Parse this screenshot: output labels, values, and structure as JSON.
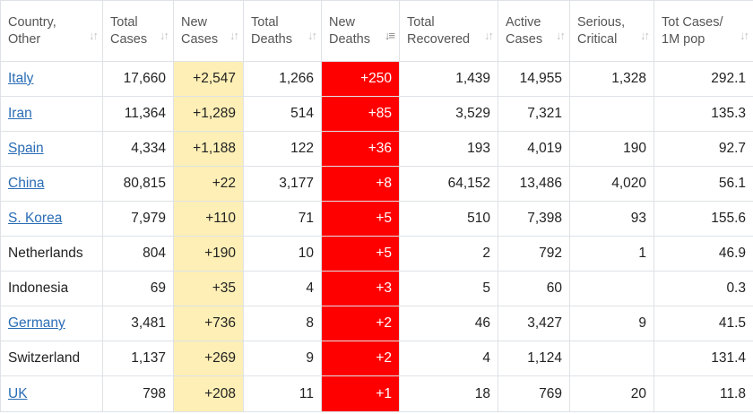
{
  "headers": [
    {
      "label": "Country,\nOther",
      "sort": "both"
    },
    {
      "label": "Total\nCases",
      "sort": "both"
    },
    {
      "label": "New\nCases",
      "sort": "both"
    },
    {
      "label": "Total\nDeaths",
      "sort": "both"
    },
    {
      "label": "New\nDeaths",
      "sort": "desc"
    },
    {
      "label": "Total\nRecovered",
      "sort": "both"
    },
    {
      "label": "Active\nCases",
      "sort": "both"
    },
    {
      "label": "Serious,\nCritical",
      "sort": "both"
    },
    {
      "label": "Tot Cases/\n1M pop",
      "sort": "both"
    }
  ],
  "rows": [
    {
      "country": "Italy",
      "link": true,
      "total_cases": "17,660",
      "new_cases": "+2,547",
      "total_deaths": "1,266",
      "new_deaths": "+250",
      "total_recovered": "1,439",
      "active_cases": "14,955",
      "serious_critical": "1,328",
      "per_million": "292.1"
    },
    {
      "country": "Iran",
      "link": true,
      "total_cases": "11,364",
      "new_cases": "+1,289",
      "total_deaths": "514",
      "new_deaths": "+85",
      "total_recovered": "3,529",
      "active_cases": "7,321",
      "serious_critical": "",
      "per_million": "135.3"
    },
    {
      "country": "Spain",
      "link": true,
      "total_cases": "4,334",
      "new_cases": "+1,188",
      "total_deaths": "122",
      "new_deaths": "+36",
      "total_recovered": "193",
      "active_cases": "4,019",
      "serious_critical": "190",
      "per_million": "92.7"
    },
    {
      "country": "China",
      "link": true,
      "total_cases": "80,815",
      "new_cases": "+22",
      "total_deaths": "3,177",
      "new_deaths": "+8",
      "total_recovered": "64,152",
      "active_cases": "13,486",
      "serious_critical": "4,020",
      "per_million": "56.1"
    },
    {
      "country": "S. Korea",
      "link": true,
      "total_cases": "7,979",
      "new_cases": "+110",
      "total_deaths": "71",
      "new_deaths": "+5",
      "total_recovered": "510",
      "active_cases": "7,398",
      "serious_critical": "93",
      "per_million": "155.6"
    },
    {
      "country": "Netherlands",
      "link": false,
      "total_cases": "804",
      "new_cases": "+190",
      "total_deaths": "10",
      "new_deaths": "+5",
      "total_recovered": "2",
      "active_cases": "792",
      "serious_critical": "1",
      "per_million": "46.9"
    },
    {
      "country": "Indonesia",
      "link": false,
      "total_cases": "69",
      "new_cases": "+35",
      "total_deaths": "4",
      "new_deaths": "+3",
      "total_recovered": "5",
      "active_cases": "60",
      "serious_critical": "",
      "per_million": "0.3"
    },
    {
      "country": "Germany",
      "link": true,
      "total_cases": "3,481",
      "new_cases": "+736",
      "total_deaths": "8",
      "new_deaths": "+2",
      "total_recovered": "46",
      "active_cases": "3,427",
      "serious_critical": "9",
      "per_million": "41.5"
    },
    {
      "country": "Switzerland",
      "link": false,
      "total_cases": "1,137",
      "new_cases": "+269",
      "total_deaths": "9",
      "new_deaths": "+2",
      "total_recovered": "4",
      "active_cases": "1,124",
      "serious_critical": "",
      "per_million": "131.4"
    },
    {
      "country": "UK",
      "link": true,
      "total_cases": "798",
      "new_cases": "+208",
      "total_deaths": "11",
      "new_deaths": "+1",
      "total_recovered": "18",
      "active_cases": "769",
      "serious_critical": "20",
      "per_million": "11.8"
    }
  ]
}
